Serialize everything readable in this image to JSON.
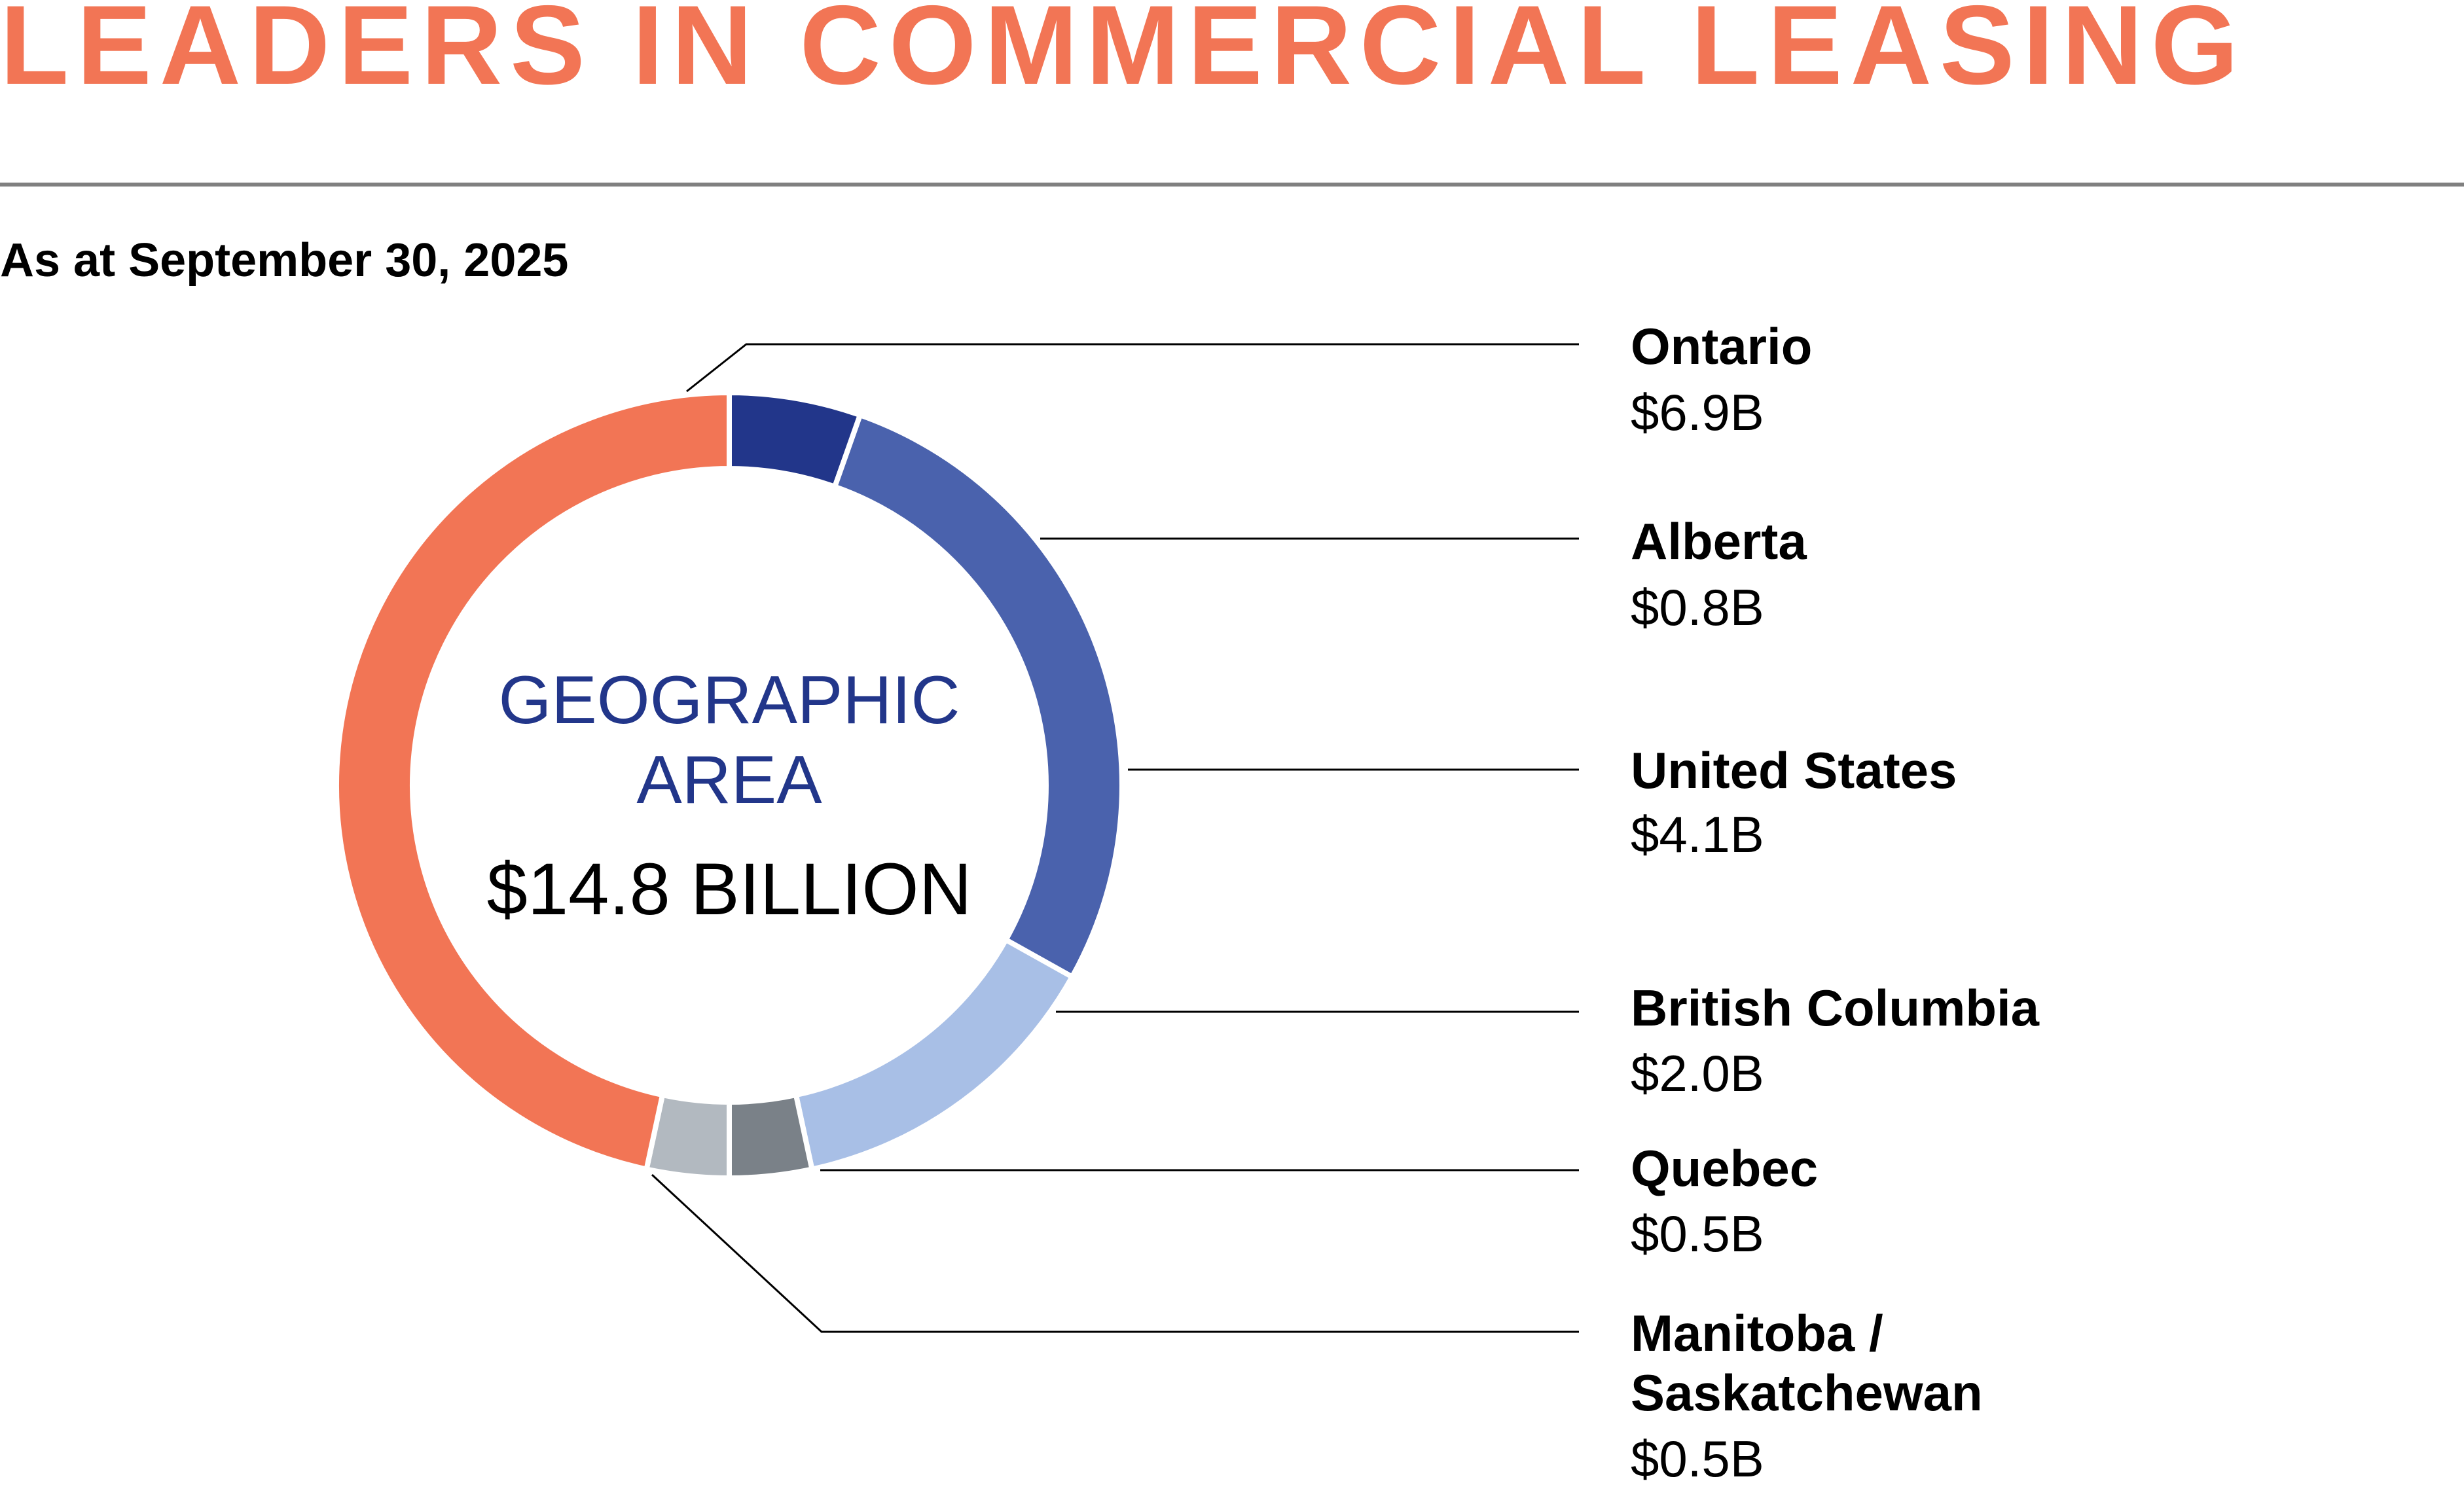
{
  "header": {
    "title": "LEADERS IN COMMERCIAL LEASING",
    "subtitle": "As at September 30, 2025"
  },
  "colors": {
    "title": "#F27555",
    "center_label": "#22368A",
    "rule": "#808080"
  },
  "chart_data": {
    "type": "pie",
    "variant": "donut",
    "title": "GEOGRAPHIC AREA",
    "center_label_lines": [
      "GEOGRAPHIC",
      "AREA"
    ],
    "total_label": "$14.8 BILLION",
    "total": 14.8,
    "unit": "$B",
    "slices": [
      {
        "name": "Alberta",
        "value": 0.8,
        "label_lines": [
          "Alberta"
        ],
        "value_label": "$0.8B",
        "color": "#22368A"
      },
      {
        "name": "United States",
        "value": 4.1,
        "label_lines": [
          "United States"
        ],
        "value_label": "$4.1B",
        "color": "#4A62AD"
      },
      {
        "name": "British Columbia",
        "value": 2.0,
        "label_lines": [
          "British Columbia"
        ],
        "value_label": "$2.0B",
        "color": "#A8BFE6"
      },
      {
        "name": "Quebec",
        "value": 0.5,
        "label_lines": [
          "Quebec"
        ],
        "value_label": "$0.5B",
        "color": "#7A8188"
      },
      {
        "name": "Manitoba / Saskatchewan",
        "value": 0.5,
        "label_lines": [
          "Manitoba /",
          "Saskatchewan"
        ],
        "value_label": "$0.5B",
        "color": "#B2B9C0"
      },
      {
        "name": "Ontario",
        "value": 6.9,
        "label_lines": [
          "Ontario"
        ],
        "value_label": "$6.9B",
        "color": "#F27555"
      }
    ],
    "legend_placement": "right"
  }
}
